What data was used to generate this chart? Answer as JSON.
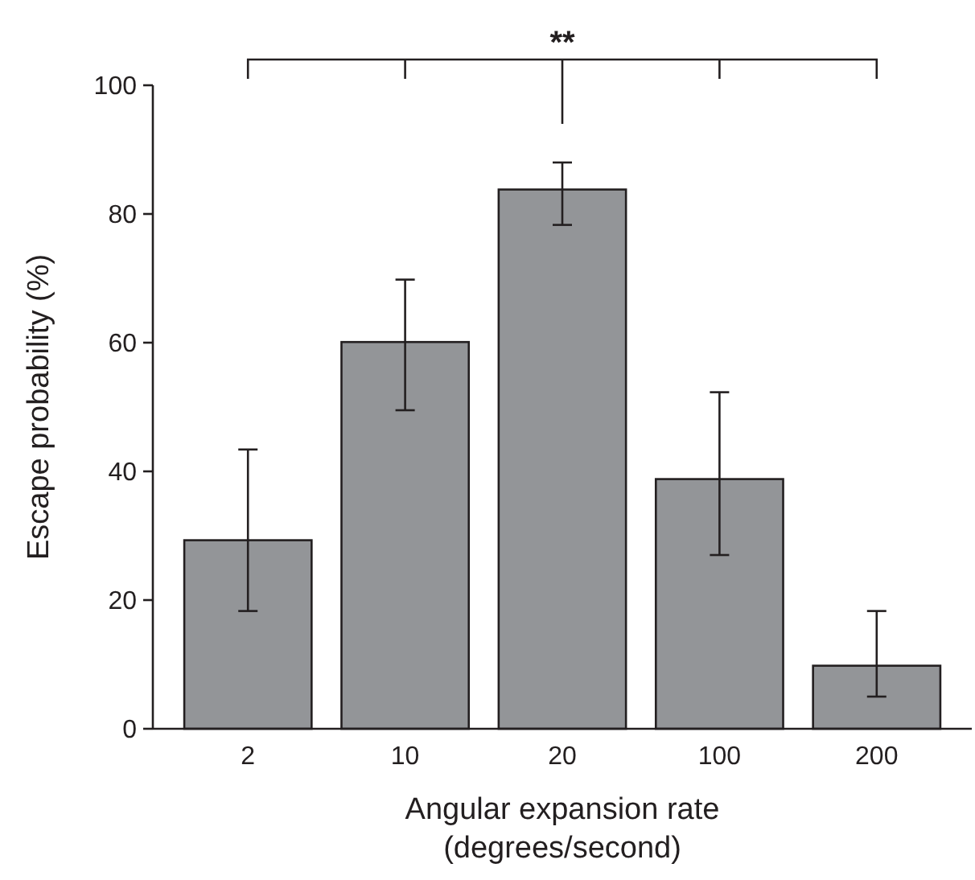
{
  "chart_data": {
    "type": "bar",
    "xlabel": "Angular expansion rate\n(degrees/second)",
    "ylabel": "Escape probability (%)",
    "categories": [
      "2",
      "10",
      "20",
      "100",
      "200"
    ],
    "values": [
      29.3,
      60.1,
      83.8,
      38.8,
      9.8
    ],
    "errors": [
      [
        18.3,
        43.4
      ],
      [
        49.5,
        69.8
      ],
      [
        78.3,
        88.0
      ],
      [
        27.0,
        52.3
      ],
      [
        5.0,
        18.3
      ]
    ],
    "color": "#939598",
    "ylim": [
      0,
      100
    ],
    "yticks": [
      0,
      20,
      40,
      60,
      80,
      100
    ],
    "grid": false,
    "annotations": [
      "**"
    ]
  }
}
